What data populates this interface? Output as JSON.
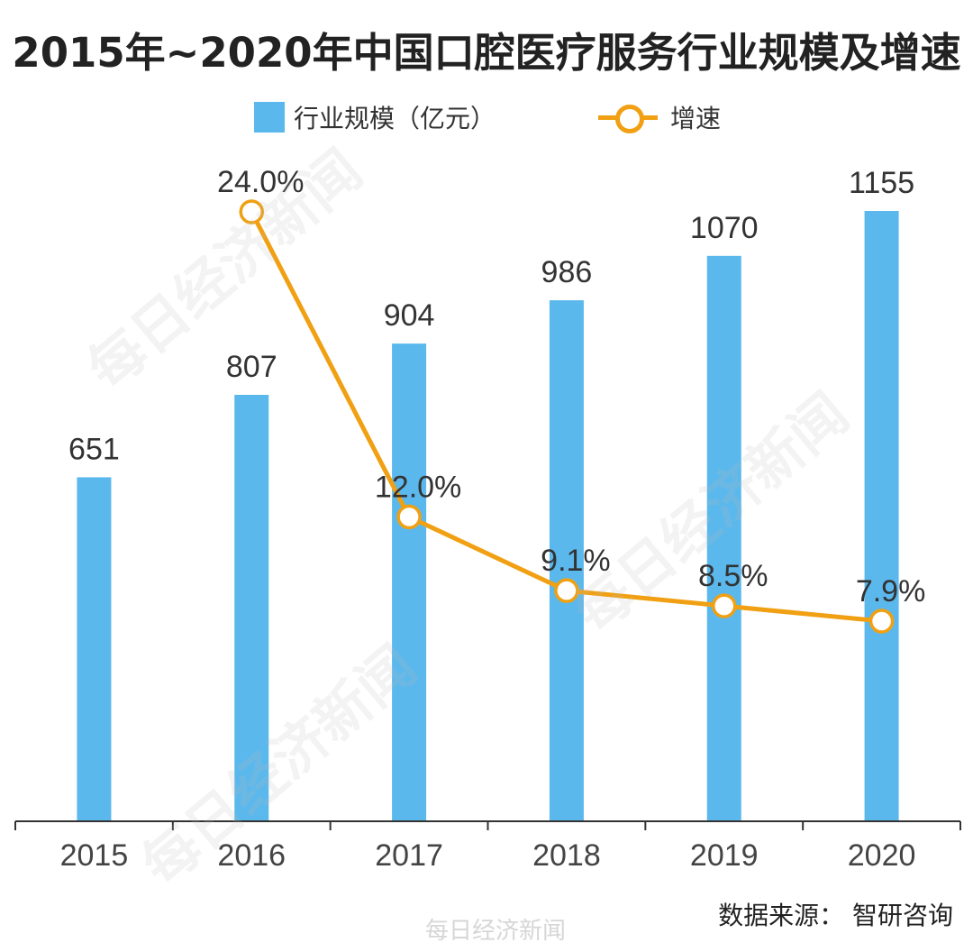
{
  "title": "2015年~2020年中国口腔医疗服务行业规模及增速",
  "legend": {
    "bar_label": "行业规模（亿元）",
    "line_label": "增速"
  },
  "source": "数据来源：  智研咨询",
  "watermark": "每日经济新闻",
  "colors": {
    "bar": "#5bb8ec",
    "line": "#f0a012",
    "axis": "#333333"
  },
  "chart_data": {
    "type": "bar",
    "title": "2015年~2020年中国口腔医疗服务行业规模及增速",
    "categories": [
      "2015",
      "2016",
      "2017",
      "2018",
      "2019",
      "2020"
    ],
    "series": [
      {
        "name": "行业规模（亿元）",
        "type": "bar",
        "values": [
          651,
          807,
          904,
          986,
          1070,
          1155
        ],
        "labels": [
          "651",
          "807",
          "904",
          "986",
          "1070",
          "1155"
        ]
      },
      {
        "name": "增速",
        "type": "line",
        "values": [
          null,
          24.0,
          12.0,
          9.1,
          8.5,
          7.9
        ],
        "labels": [
          "",
          "24.0%",
          "12.0%",
          "9.1%",
          "8.5%",
          "7.9%"
        ]
      }
    ],
    "bar_ylim": [
      0,
      1320
    ],
    "line_ylim": [
      -10,
      30
    ],
    "grid": false,
    "legend_position": "top"
  }
}
